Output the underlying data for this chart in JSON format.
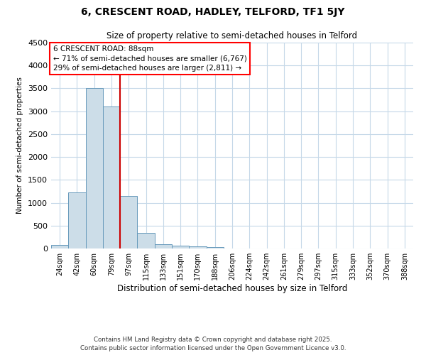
{
  "title": "6, CRESCENT ROAD, HADLEY, TELFORD, TF1 5JY",
  "subtitle": "Size of property relative to semi-detached houses in Telford",
  "xlabel": "Distribution of semi-detached houses by size in Telford",
  "ylabel": "Number of semi-detached properties",
  "categories": [
    "24sqm",
    "42sqm",
    "60sqm",
    "79sqm",
    "97sqm",
    "115sqm",
    "133sqm",
    "151sqm",
    "170sqm",
    "188sqm",
    "206sqm",
    "224sqm",
    "242sqm",
    "261sqm",
    "279sqm",
    "297sqm",
    "315sqm",
    "333sqm",
    "352sqm",
    "370sqm",
    "388sqm"
  ],
  "values": [
    75,
    1220,
    3510,
    3100,
    1150,
    340,
    100,
    55,
    45,
    25,
    0,
    0,
    0,
    0,
    0,
    0,
    0,
    0,
    0,
    0,
    0
  ],
  "bar_color": "#ccdde8",
  "bar_edge_color": "#6699bb",
  "red_line_color": "#cc0000",
  "annotation_title": "6 CRESCENT ROAD: 88sqm",
  "annotation_line1": "← 71% of semi-detached houses are smaller (6,767)",
  "annotation_line2": "29% of semi-detached houses are larger (2,811) →",
  "footer_line1": "Contains HM Land Registry data © Crown copyright and database right 2025.",
  "footer_line2": "Contains public sector information licensed under the Open Government Licence v3.0.",
  "ylim": [
    0,
    4500
  ],
  "yticks": [
    0,
    500,
    1000,
    1500,
    2000,
    2500,
    3000,
    3500,
    4000,
    4500
  ],
  "background_color": "#ffffff",
  "grid_color": "#c5d8e8"
}
